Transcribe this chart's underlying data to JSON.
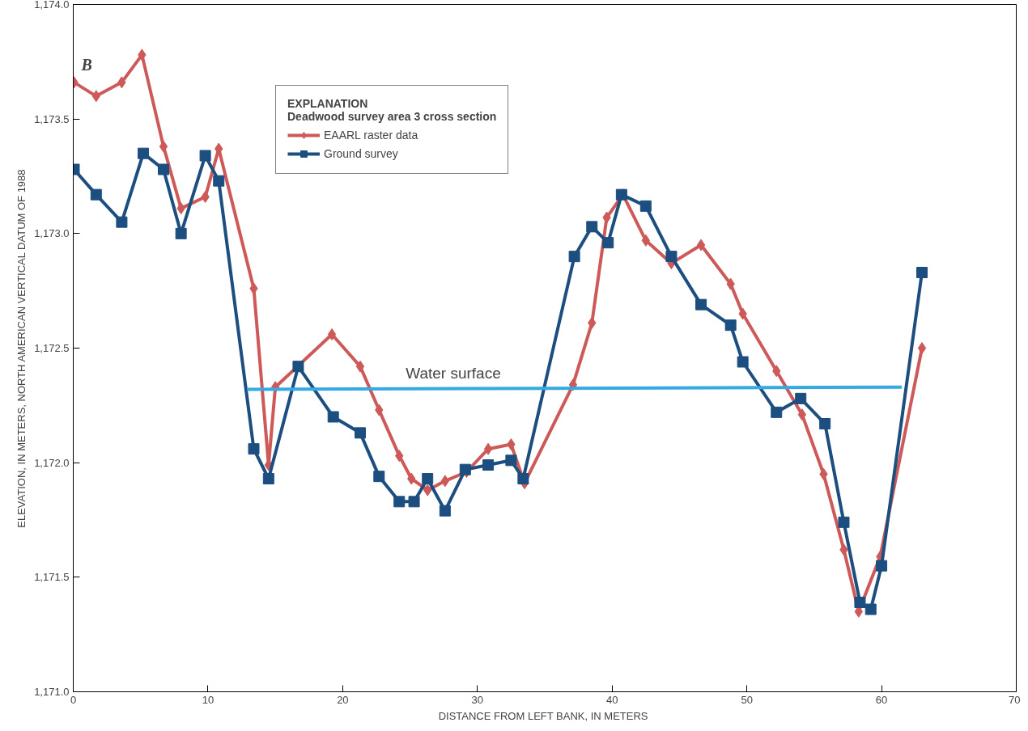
{
  "chart_data": {
    "type": "line",
    "xlabel": "DISTANCE FROM  LEFT BANK, IN METERS",
    "ylabel": "ELEVATION, IN METERS, NORTH AMERICAN VERTICAL DATUM OF 1988",
    "legend_title": "EXPLANATION\nDeadwood survey area 3 cross section",
    "legend": "top left",
    "grid": false,
    "line_style": "solid",
    "xlim": [
      0,
      70
    ],
    "xticks": [
      0,
      10,
      20,
      30,
      40,
      50,
      60,
      70
    ],
    "ylim": [
      1171.0,
      1174.0
    ],
    "yticks": [
      {
        "value": 1171.0,
        "label": "1,171.0"
      },
      {
        "value": 1171.5,
        "label": "1,171.5"
      },
      {
        "value": 1172.0,
        "label": "1,172.0"
      },
      {
        "value": 1172.5,
        "label": "1,172.5"
      },
      {
        "value": 1173.0,
        "label": "1,173.0"
      },
      {
        "value": 1173.5,
        "label": "1,173.5"
      },
      {
        "value": 1174.0,
        "label": "1,174.0"
      }
    ],
    "annotations": [
      "B",
      "Water surface"
    ],
    "series": [
      {
        "name": "EAARL raster data",
        "color": "#cd5a58",
        "marker": "diamond",
        "x": [
          0.06,
          1.7,
          3.6,
          5.1,
          6.7,
          8.0,
          9.8,
          10.8,
          13.4,
          14.5,
          15.0,
          19.2,
          21.3,
          22.7,
          24.2,
          25.1,
          26.3,
          27.6,
          29.2,
          30.8,
          32.5,
          33.5,
          37.1,
          38.5,
          39.6,
          40.8,
          42.5,
          44.4,
          46.6,
          48.8,
          49.7,
          52.2,
          54.1,
          55.7,
          57.2,
          58.3,
          59.9,
          63.0
        ],
        "values": [
          1173.66,
          1173.6,
          1173.66,
          1173.78,
          1173.38,
          1173.11,
          1173.16,
          1173.37,
          1172.76,
          1171.99,
          1172.33,
          1172.56,
          1172.42,
          1172.23,
          1172.03,
          1171.93,
          1171.88,
          1171.92,
          1171.96,
          1172.06,
          1172.08,
          1171.91,
          1172.34,
          1172.61,
          1173.07,
          1173.17,
          1172.97,
          1172.87,
          1172.95,
          1172.78,
          1172.65,
          1172.4,
          1172.21,
          1171.95,
          1171.62,
          1171.35,
          1171.59,
          1172.5
        ]
      },
      {
        "name": "Ground survey",
        "color": "#1c4e80",
        "marker": "square",
        "x": [
          0.06,
          1.7,
          3.6,
          5.2,
          6.7,
          8.0,
          9.8,
          10.8,
          13.4,
          14.5,
          16.7,
          19.3,
          21.3,
          22.7,
          24.2,
          25.3,
          26.3,
          27.6,
          29.1,
          30.8,
          32.5,
          33.4,
          37.2,
          38.5,
          39.7,
          40.7,
          42.5,
          44.4,
          46.6,
          48.8,
          49.7,
          52.2,
          54.0,
          55.8,
          57.2,
          58.4,
          59.2,
          60.0,
          63.0
        ],
        "values": [
          1173.28,
          1173.17,
          1173.05,
          1173.35,
          1173.28,
          1173.0,
          1173.34,
          1173.23,
          1172.06,
          1171.93,
          1172.42,
          1172.2,
          1172.13,
          1171.94,
          1171.83,
          1171.83,
          1171.93,
          1171.79,
          1171.97,
          1171.99,
          1172.01,
          1171.93,
          1172.9,
          1173.03,
          1172.96,
          1173.17,
          1173.12,
          1172.9,
          1172.69,
          1172.6,
          1172.44,
          1172.22,
          1172.28,
          1172.17,
          1171.74,
          1171.39,
          1171.36,
          1171.55,
          1172.83
        ]
      },
      {
        "color": "#35a9e1",
        "marker": "none",
        "x": [
          12.9,
          61.5
        ],
        "values": [
          1172.32,
          1172.33
        ]
      }
    ]
  }
}
